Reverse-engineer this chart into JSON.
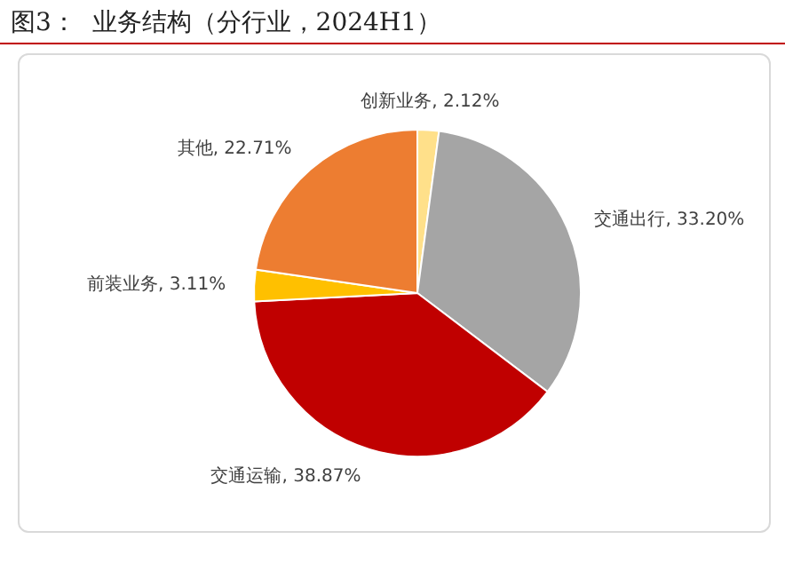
{
  "chart_data": {
    "type": "pie",
    "title": "图3：  业务结构（分行业，2024H1）",
    "categories": [
      "创新业务",
      "交通出行",
      "交通运输",
      "前装业务",
      "其他"
    ],
    "values": [
      2.12,
      33.2,
      38.87,
      3.11,
      22.71
    ],
    "value_labels": [
      "2.12%",
      "33.20%",
      "38.87%",
      "3.11%",
      "22.71%"
    ],
    "colors": [
      "#ffe08a",
      "#a5a5a5",
      "#c00000",
      "#ffc000",
      "#ed7d31"
    ],
    "legend": false
  }
}
